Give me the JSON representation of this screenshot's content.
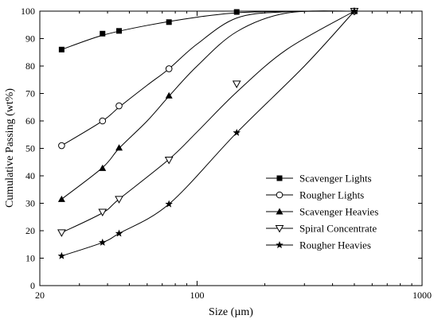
{
  "chart_data": {
    "type": "scatter",
    "title": "",
    "xlabel": "Size (µm)",
    "ylabel": "Cumulative Passing (wt%)",
    "xscale": "log",
    "xlim": [
      20,
      1000
    ],
    "ylim": [
      0,
      100
    ],
    "xticks": [
      20,
      100,
      1000
    ],
    "yticks": [
      0,
      10,
      20,
      30,
      40,
      50,
      60,
      70,
      80,
      90,
      100
    ],
    "xtick_labels": [
      "20",
      "100",
      "1000"
    ],
    "ytick_labels": [
      "0",
      "10",
      "20",
      "30",
      "40",
      "50",
      "60",
      "70",
      "80",
      "90",
      "100"
    ],
    "grid": false,
    "legend_position": "bottom-right",
    "series": [
      {
        "name": "Scavenger Lights",
        "marker": "square-filled",
        "x": [
          25,
          38,
          45,
          75,
          150,
          500
        ],
        "y": [
          86,
          91.8,
          92.8,
          96,
          99.7,
          100
        ],
        "curve": [
          [
            25,
            86
          ],
          [
            38,
            91.2
          ],
          [
            60,
            94.8
          ],
          [
            100,
            97.8
          ],
          [
            150,
            99.4
          ],
          [
            250,
            99.9
          ],
          [
            500,
            100
          ]
        ]
      },
      {
        "name": "Rougher Lights",
        "marker": "circle-open",
        "x": [
          25,
          38,
          45,
          75,
          500
        ],
        "y": [
          51,
          60,
          65.5,
          79,
          100
        ],
        "curve": [
          [
            25,
            51
          ],
          [
            38,
            60
          ],
          [
            45,
            65
          ],
          [
            60,
            73
          ],
          [
            75,
            79
          ],
          [
            100,
            88
          ],
          [
            150,
            97.5
          ],
          [
            250,
            99.8
          ],
          [
            500,
            100
          ]
        ]
      },
      {
        "name": "Scavenger Heavies",
        "marker": "triangle-up-filled",
        "x": [
          25,
          38,
          45,
          75,
          500
        ],
        "y": [
          31.5,
          42.8,
          50.2,
          69.2,
          100
        ],
        "curve": [
          [
            25,
            31.5
          ],
          [
            38,
            43
          ],
          [
            45,
            50
          ],
          [
            60,
            60
          ],
          [
            75,
            69
          ],
          [
            100,
            80
          ],
          [
            150,
            92.5
          ],
          [
            250,
            99.3
          ],
          [
            500,
            100
          ]
        ]
      },
      {
        "name": "Spiral Concentrate",
        "marker": "triangle-down-open",
        "x": [
          25,
          38,
          45,
          75,
          150,
          500
        ],
        "y": [
          19.3,
          26.8,
          31.5,
          45.8,
          73.5,
          100
        ],
        "curve": [
          [
            25,
            19.3
          ],
          [
            38,
            26.5
          ],
          [
            45,
            31.5
          ],
          [
            75,
            46
          ],
          [
            100,
            56
          ],
          [
            150,
            70.5
          ],
          [
            250,
            86
          ],
          [
            500,
            100
          ]
        ]
      },
      {
        "name": "Rougher Heavies",
        "marker": "star-filled",
        "x": [
          25,
          38,
          45,
          75,
          150,
          500
        ],
        "y": [
          10.8,
          15.7,
          19,
          29.7,
          55.7,
          100
        ],
        "curve": [
          [
            25,
            10.8
          ],
          [
            38,
            15.7
          ],
          [
            45,
            19
          ],
          [
            75,
            29.7
          ],
          [
            150,
            55.7
          ],
          [
            300,
            80
          ],
          [
            500,
            100
          ]
        ]
      }
    ]
  }
}
